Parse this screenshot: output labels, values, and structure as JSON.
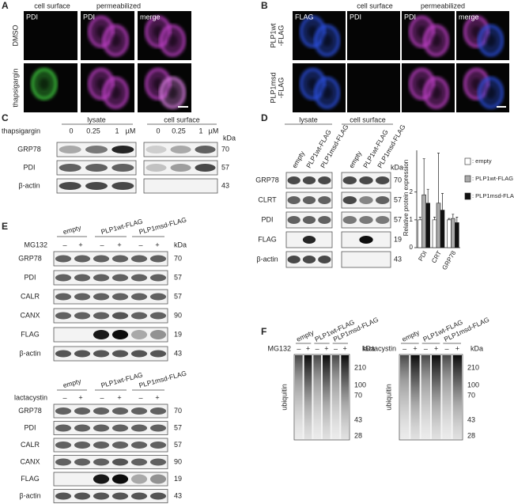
{
  "panel_labels": [
    "A",
    "B",
    "C",
    "D",
    "E",
    "F"
  ],
  "a": {
    "column_headers": [
      "cell surface",
      "permeabilized"
    ],
    "image_labels": [
      "PDI",
      "PDI",
      "merge"
    ],
    "row_labels": [
      "DMSO",
      "thapsigargin"
    ]
  },
  "b": {
    "column_headers": [
      "cell surface",
      "permeabilized"
    ],
    "image_labels": [
      "FLAG",
      "PDI",
      "PDI",
      "merge"
    ],
    "row_labels": [
      [
        "PLP1wt",
        "-FLAG"
      ],
      [
        "PLP1msd",
        "-FLAG"
      ]
    ]
  },
  "c": {
    "group_headers": [
      "lysate",
      "cell surface"
    ],
    "treatment": "thapsigargin",
    "doses": [
      "0",
      "0.25",
      "1"
    ],
    "dose_unit": "µM",
    "kda_label": "kDa",
    "rows": [
      "GRP78",
      "PDI",
      "β-actin"
    ],
    "markers": [
      "70",
      "57",
      "43"
    ]
  },
  "d": {
    "group_headers": [
      "lysate",
      "cell surface"
    ],
    "lanes": [
      "empty",
      "PLP1wt-FLAG",
      "PLP1msd-FLAG"
    ],
    "kda_label": "kDa",
    "rows": [
      "GRP78",
      "CLRT",
      "PDI",
      "FLAG",
      "β-actin"
    ],
    "markers": [
      "70",
      "57",
      "57",
      "19",
      "43"
    ]
  },
  "chart_data": {
    "type": "bar",
    "y_label": "Relative protein expression",
    "categories": [
      "PDI",
      "CRT",
      "GRP78"
    ],
    "ylim": [
      0,
      3.5
    ],
    "yticks": [
      0,
      1,
      2
    ],
    "legend": "right",
    "series": [
      {
        "name": ": empty",
        "color": "#ffffff",
        "values": [
          1,
          1,
          1
        ],
        "errors": [
          0.1,
          0.1,
          0.05
        ]
      },
      {
        "name": ": PLP1wt-FLAG",
        "color": "#aaaaaa",
        "values": [
          1.9,
          1.6,
          1.05
        ],
        "errors": [
          1.3,
          1.8,
          0.15
        ]
      },
      {
        "name": ": PLP1msd-FLAG",
        "color": "#111111",
        "values": [
          1.6,
          1.35,
          0.9
        ],
        "errors": [
          0.5,
          0.6,
          0.2
        ]
      }
    ]
  },
  "e": {
    "lane_groups": [
      "empty",
      "PLP1wt-FLAG",
      "PLP1msd-FLAG"
    ],
    "lanes": [
      "–",
      "+",
      "–",
      "+",
      "–",
      "+"
    ],
    "kda_label": "kDa",
    "blots": [
      {
        "treatment": "MG132",
        "rows": [
          "GRP78",
          "PDI",
          "CALR",
          "CANX",
          "FLAG",
          "β-actin"
        ],
        "markers": [
          "70",
          "57",
          "57",
          "90",
          "19",
          "43"
        ]
      },
      {
        "treatment": "lactacystin",
        "rows": [
          "GRP78",
          "PDI",
          "CALR",
          "CANX",
          "FLAG",
          "β-actin"
        ],
        "markers": [
          "70",
          "57",
          "57",
          "90",
          "19",
          "43"
        ]
      }
    ]
  },
  "f": {
    "lane_groups": [
      "empty",
      "PLP1wt-FLAG",
      "PLP1msd-FLAG"
    ],
    "lanes": [
      "–",
      "+",
      "–",
      "+",
      "–",
      "+"
    ],
    "kda_label": "kDa",
    "blot_label": "ubiquitin",
    "markers": [
      "210",
      "100",
      "70",
      "43",
      "28"
    ],
    "blots": [
      {
        "treatment": "MG132"
      },
      {
        "treatment": "lactacystin"
      }
    ]
  }
}
